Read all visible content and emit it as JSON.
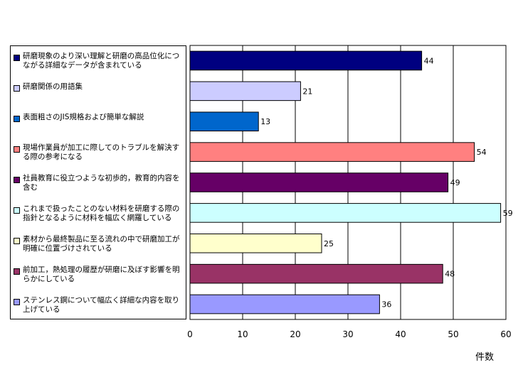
{
  "chart_data": {
    "type": "bar",
    "orientation": "horizontal",
    "categories": [
      "研磨現象のより深い理解と研磨の高品位化につながる詳細なデータが含まれている",
      "研磨関係の用語集",
      "表面粗さのJIS規格および簡単な解説",
      "現場作業員が加工に際してのトラブルを解決する際の参考になる",
      "社員教育に役立つような初歩的，教育的内容を含む",
      "これまで扱ったことのない材料を研磨する際の指針となるように材料を幅広く網羅している",
      "素材から最終製品に至る流れの中で研磨加工が明確に位置づけされている",
      "前加工，熱処理の履歴が研磨に及ぼす影響を明らかにしている",
      "ステンレス鋼について幅広く詳細な内容を取り上げている"
    ],
    "values": [
      44,
      21,
      13,
      54,
      49,
      59,
      25,
      48,
      36
    ],
    "colors": [
      "#000080",
      "#CCCCFF",
      "#0066CC",
      "#FF8080",
      "#660066",
      "#CCFFFF",
      "#FFFFCC",
      "#993366",
      "#9999FF"
    ],
    "xlim": [
      0,
      60
    ],
    "xticks": [
      0,
      10,
      20,
      30,
      40,
      50,
      60
    ],
    "xlabel": "件数",
    "title": "",
    "grid": true,
    "legend_position": "left"
  }
}
